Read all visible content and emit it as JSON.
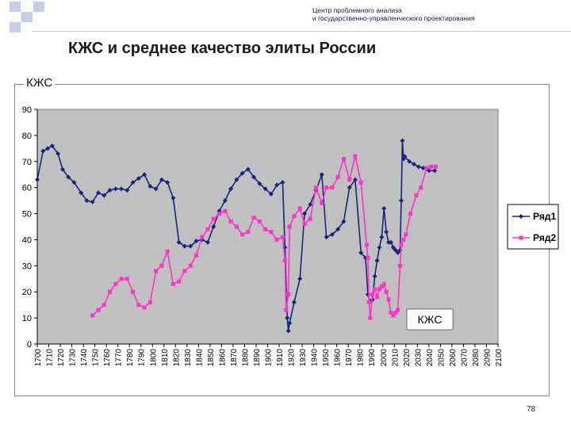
{
  "header": {
    "org_line1": "Центр проблемного анализа",
    "org_line2": "и государственно-управленческого проектирования"
  },
  "slide": {
    "title": "КЖС и среднее качество элиты России",
    "page_number": "78"
  },
  "chart_data": {
    "type": "line",
    "title": "КЖС",
    "annotation": "КЖС",
    "ylim": [
      0,
      90
    ],
    "yticks": [
      0,
      10,
      20,
      30,
      40,
      50,
      60,
      70,
      80,
      90
    ],
    "xlim": [
      1700,
      2100
    ],
    "xticks": [
      1700,
      1710,
      1720,
      1730,
      1740,
      1750,
      1760,
      1770,
      1780,
      1790,
      1800,
      1810,
      1820,
      1830,
      1840,
      1850,
      1860,
      1870,
      1880,
      1890,
      1900,
      1910,
      1920,
      1930,
      1940,
      1950,
      1960,
      1970,
      1980,
      1990,
      2000,
      2010,
      2020,
      2030,
      2040,
      2050,
      2060,
      2070,
      2080,
      2090,
      2100
    ],
    "plot_background": "#c0c0c0",
    "grid": false,
    "legend_position": "right",
    "series": [
      {
        "name": "Ряд1",
        "color": "#1a237e",
        "marker": "diamond",
        "points": [
          [
            1700,
            63
          ],
          [
            1705,
            74
          ],
          [
            1709,
            75
          ],
          [
            1713,
            76
          ],
          [
            1718,
            73
          ],
          [
            1722,
            67
          ],
          [
            1727,
            64
          ],
          [
            1732,
            62
          ],
          [
            1738,
            58
          ],
          [
            1743,
            55
          ],
          [
            1748,
            54.5
          ],
          [
            1753,
            58
          ],
          [
            1758,
            57
          ],
          [
            1763,
            59
          ],
          [
            1768,
            59.5
          ],
          [
            1773,
            59.5
          ],
          [
            1778,
            59
          ],
          [
            1783,
            62
          ],
          [
            1788,
            63.5
          ],
          [
            1793,
            65
          ],
          [
            1798,
            60.5
          ],
          [
            1803,
            59.5
          ],
          [
            1808,
            63
          ],
          [
            1813,
            62
          ],
          [
            1818,
            56
          ],
          [
            1823,
            39
          ],
          [
            1828,
            37.5
          ],
          [
            1833,
            37.5
          ],
          [
            1838,
            39.5
          ],
          [
            1843,
            40
          ],
          [
            1848,
            39
          ],
          [
            1853,
            45
          ],
          [
            1858,
            51
          ],
          [
            1863,
            55
          ],
          [
            1868,
            59.5
          ],
          [
            1873,
            63
          ],
          [
            1878,
            65.5
          ],
          [
            1883,
            67
          ],
          [
            1888,
            64
          ],
          [
            1893,
            61.5
          ],
          [
            1898,
            59.5
          ],
          [
            1903,
            57.5
          ],
          [
            1908,
            61
          ],
          [
            1913,
            62
          ],
          [
            1915,
            37
          ],
          [
            1917,
            10
          ],
          [
            1918,
            5
          ],
          [
            1919,
            8
          ],
          [
            1923,
            16
          ],
          [
            1928,
            25
          ],
          [
            1932,
            50
          ],
          [
            1937,
            53.5
          ],
          [
            1942,
            59
          ],
          [
            1947,
            65
          ],
          [
            1951,
            41
          ],
          [
            1956,
            42
          ],
          [
            1961,
            44
          ],
          [
            1966,
            47
          ],
          [
            1971,
            60
          ],
          [
            1976,
            63
          ],
          [
            1981,
            35
          ],
          [
            1985,
            33
          ],
          [
            1987,
            19
          ],
          [
            1989,
            16
          ],
          [
            1991,
            17
          ],
          [
            1993,
            26
          ],
          [
            1995,
            32
          ],
          [
            1997,
            37
          ],
          [
            1999,
            41
          ],
          [
            2001,
            52
          ],
          [
            2003,
            43
          ],
          [
            2005,
            39
          ],
          [
            2007,
            39
          ],
          [
            2009,
            37
          ],
          [
            2011,
            36
          ],
          [
            2013,
            35
          ],
          [
            2015,
            36
          ],
          [
            2016,
            55
          ],
          [
            2017,
            78
          ],
          [
            2018,
            71
          ],
          [
            2019,
            72
          ],
          [
            2023,
            70
          ],
          [
            2027,
            69
          ],
          [
            2031,
            68
          ],
          [
            2035,
            67.5
          ],
          [
            2040,
            66.5
          ],
          [
            2045,
            66.5
          ]
        ]
      },
      {
        "name": "Ряд2",
        "color": "#ff33cc",
        "marker": "square",
        "points": [
          [
            1748,
            11
          ],
          [
            1753,
            13
          ],
          [
            1758,
            15
          ],
          [
            1763,
            20
          ],
          [
            1768,
            23
          ],
          [
            1773,
            25
          ],
          [
            1778,
            25
          ],
          [
            1783,
            20
          ],
          [
            1788,
            15
          ],
          [
            1793,
            14
          ],
          [
            1798,
            16
          ],
          [
            1803,
            28
          ],
          [
            1808,
            30
          ],
          [
            1813,
            35.5
          ],
          [
            1818,
            23
          ],
          [
            1823,
            24
          ],
          [
            1828,
            28
          ],
          [
            1833,
            30
          ],
          [
            1838,
            34
          ],
          [
            1843,
            41
          ],
          [
            1848,
            44
          ],
          [
            1853,
            48
          ],
          [
            1858,
            50
          ],
          [
            1863,
            51
          ],
          [
            1868,
            47
          ],
          [
            1873,
            45
          ],
          [
            1878,
            42
          ],
          [
            1883,
            43
          ],
          [
            1888,
            48.5
          ],
          [
            1893,
            47
          ],
          [
            1898,
            44
          ],
          [
            1903,
            43
          ],
          [
            1908,
            40
          ],
          [
            1913,
            41
          ],
          [
            1915,
            32
          ],
          [
            1916,
            13
          ],
          [
            1918,
            19
          ],
          [
            1919,
            45
          ],
          [
            1923,
            49
          ],
          [
            1928,
            52
          ],
          [
            1932,
            46
          ],
          [
            1937,
            48
          ],
          [
            1942,
            60
          ],
          [
            1947,
            54
          ],
          [
            1951,
            60
          ],
          [
            1956,
            60
          ],
          [
            1961,
            64
          ],
          [
            1966,
            71
          ],
          [
            1971,
            63
          ],
          [
            1976,
            72
          ],
          [
            1981,
            62
          ],
          [
            1986,
            38
          ],
          [
            1987,
            33
          ],
          [
            1988,
            16
          ],
          [
            1989,
            10
          ],
          [
            1991,
            19
          ],
          [
            1993,
            21
          ],
          [
            1995,
            18
          ],
          [
            1997,
            21
          ],
          [
            1999,
            22
          ],
          [
            2001,
            23
          ],
          [
            2003,
            20
          ],
          [
            2005,
            17
          ],
          [
            2007,
            12
          ],
          [
            2009,
            11
          ],
          [
            2011,
            12
          ],
          [
            2013,
            13
          ],
          [
            2015,
            30
          ],
          [
            2016,
            38
          ],
          [
            2018,
            40
          ],
          [
            2020,
            42
          ],
          [
            2024,
            50
          ],
          [
            2029,
            57
          ],
          [
            2033,
            60
          ],
          [
            2038,
            67.5
          ],
          [
            2042,
            68
          ],
          [
            2046,
            68
          ]
        ]
      }
    ]
  }
}
